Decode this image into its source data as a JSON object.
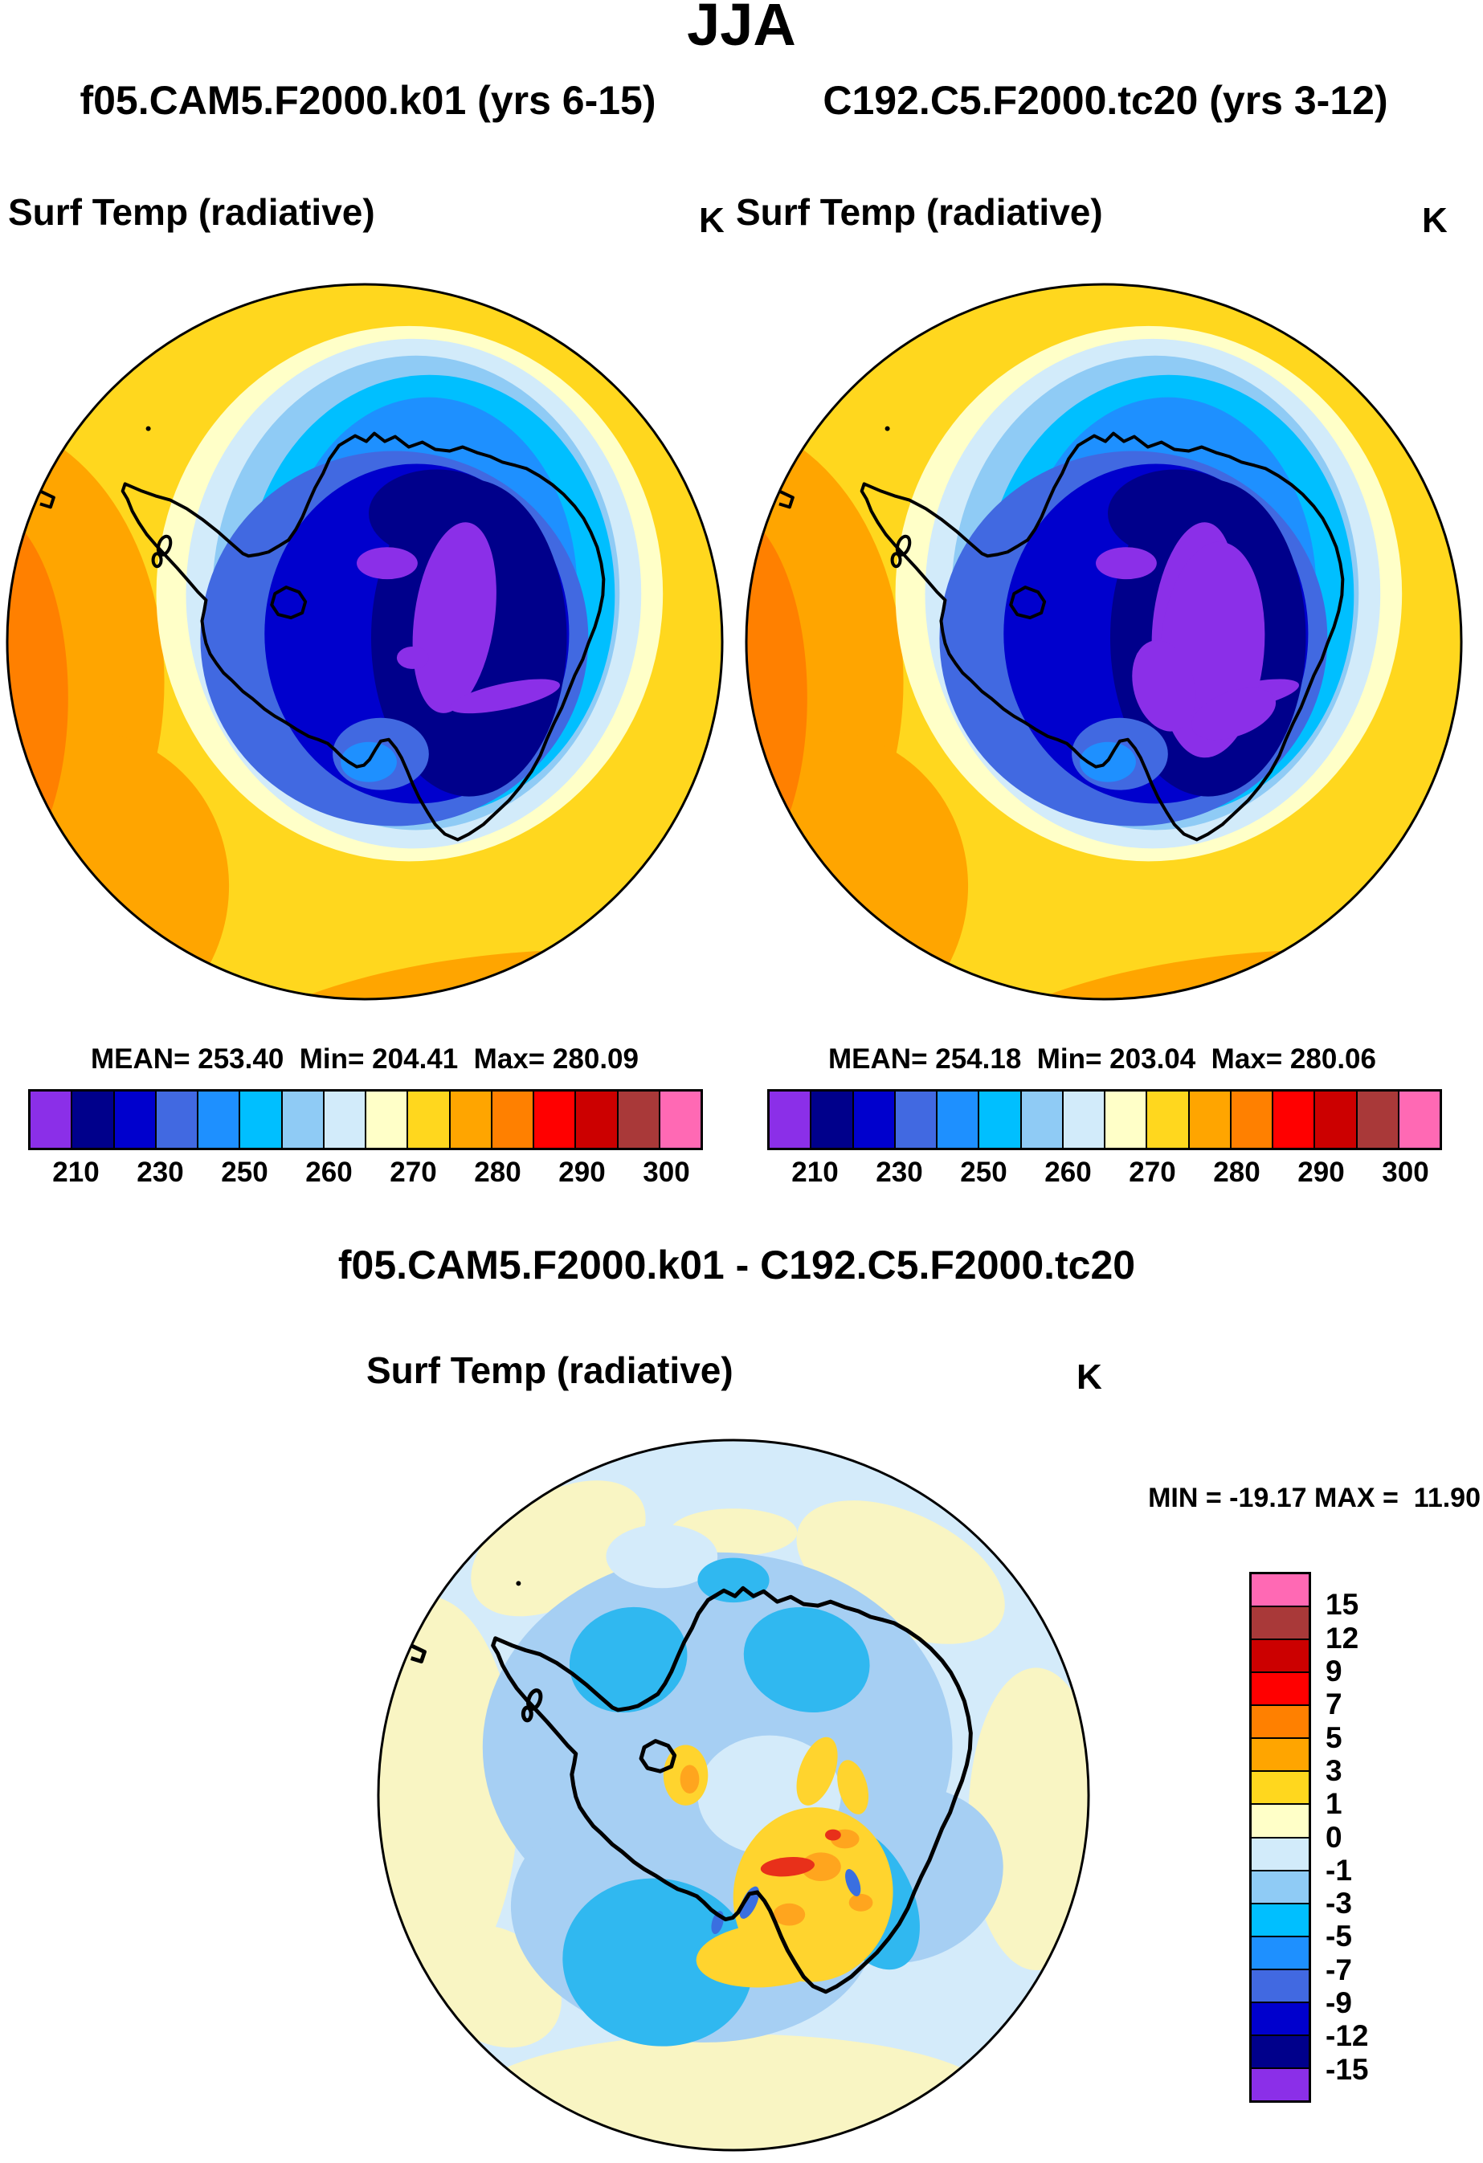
{
  "title": "JJA",
  "panel_left": {
    "subtitle": "f05.CAM5.F2000.k01 (yrs 6-15)",
    "field": "Surf Temp (radiative)",
    "units": "K",
    "stats": "MEAN= 253.40  Min= 204.41  Max= 280.09"
  },
  "panel_right": {
    "subtitle": "C192.C5.F2000.tc20 (yrs 3-12)",
    "field": "Surf Temp (radiative)",
    "units": "K",
    "stats": "MEAN= 254.18  Min= 203.04  Max= 280.06"
  },
  "panel_diff": {
    "title": "f05.CAM5.F2000.k01 - C192.C5.F2000.tc20",
    "field": "Surf Temp (radiative)",
    "units": "K",
    "minmax": "MIN = -19.17 MAX =  11.90"
  },
  "temp_colorbar": {
    "ticks": [
      "210",
      "230",
      "250",
      "260",
      "270",
      "280",
      "290",
      "300"
    ],
    "palette": [
      "#8B2FE8",
      "#00008B",
      "#0000CD",
      "#4169E1",
      "#1E90FF",
      "#00BFFF",
      "#8FCBF5",
      "#D2EBFA",
      "#FFFFC8",
      "#FFD71E",
      "#FFA500",
      "#FF8000",
      "#FF0000",
      "#CC0000",
      "#A93939",
      "#FF69B4"
    ]
  },
  "diff_colorbar": {
    "labels": [
      "15",
      "12",
      "9",
      "7",
      "5",
      "3",
      "1",
      "0",
      "-1",
      "-3",
      "-5",
      "-7",
      "-9",
      "-12",
      "-15"
    ],
    "palette": [
      "#FF69B4",
      "#A93939",
      "#CC0000",
      "#FF0000",
      "#FF8000",
      "#FFA500",
      "#FFD71E",
      "#FFFFC8",
      "#D2EBFA",
      "#8FCBF5",
      "#00BFFF",
      "#1E90FF",
      "#4169E1",
      "#0000CD",
      "#00008B",
      "#8B2FE8"
    ]
  },
  "map_colors": {
    "gold": "#FFD71E",
    "orange": "#FFA500",
    "dark_orange": "#FF8000",
    "pale_yellow": "#FFFFC8",
    "pale_blue": "#D2EBFA",
    "light_sky": "#8FCBF5",
    "deep_sky": "#00BFFF",
    "dodger": "#1E90FF",
    "royal": "#4169E1",
    "medium_blue": "#0000CD",
    "navy": "#00008B",
    "purple": "#8B2FE8",
    "coastline": "#000000",
    "diff_bg": "#D4EBFA",
    "diff_pale_yellow": "#F9F5C3",
    "diff_mid_blue": "#A6CFF3",
    "diff_cyan": "#30B8F0",
    "diff_gold": "#FFD42E",
    "diff_orange": "#FFA51E",
    "diff_red": "#E8301A",
    "diff_royal": "#3A6FE0"
  },
  "chart_data": [
    {
      "type": "heatmap",
      "panel": "top-left",
      "title": "f05.CAM5.F2000.k01 (yrs 6-15)",
      "season": "JJA",
      "variable": "Surf Temp (radiative)",
      "units": "K",
      "region": "Antarctica, south polar stereographic view",
      "mean": 253.4,
      "min": 204.41,
      "max": 280.09,
      "colorbar_ticks": [
        210,
        230,
        250,
        260,
        270,
        280,
        290,
        300
      ],
      "legend_position": "below"
    },
    {
      "type": "heatmap",
      "panel": "top-right",
      "title": "C192.C5.F2000.tc20 (yrs 3-12)",
      "season": "JJA",
      "variable": "Surf Temp (radiative)",
      "units": "K",
      "region": "Antarctica, south polar stereographic view",
      "mean": 254.18,
      "min": 203.04,
      "max": 280.06,
      "colorbar_ticks": [
        210,
        230,
        250,
        260,
        270,
        280,
        290,
        300
      ],
      "legend_position": "below"
    },
    {
      "type": "heatmap",
      "panel": "bottom-difference",
      "title": "f05.CAM5.F2000.k01 - C192.C5.F2000.tc20",
      "season": "JJA",
      "variable": "Surf Temp (radiative)",
      "units": "K",
      "region": "Antarctica, south polar stereographic view",
      "min": -19.17,
      "max": 11.9,
      "colorbar_ticks": [
        15,
        12,
        9,
        7,
        5,
        3,
        1,
        0,
        -1,
        -3,
        -5,
        -7,
        -9,
        -12,
        -15
      ],
      "legend_position": "right"
    }
  ]
}
